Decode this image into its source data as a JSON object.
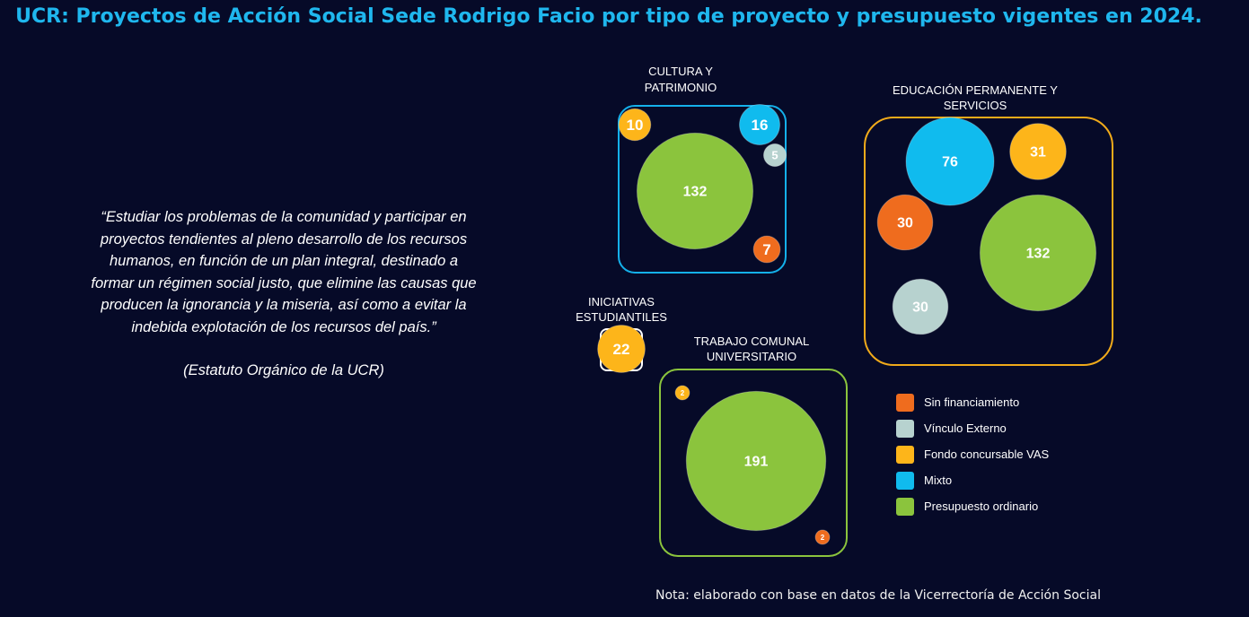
{
  "title": "UCR: Proyectos de Acción Social Sede Rodrigo Facio por tipo de proyecto y presupuesto vigentes en 2024.",
  "quote": {
    "text": "“Estudiar los problemas de la comunidad y participar en proyectos tendientes al pleno desarrollo de los recursos humanos, en función de un plan integral, destinado a formar un régimen social justo, que elimine las causas que producen la ignorancia y la miseria, así como a evitar la indebida explotación de los recursos del país.”",
    "source": "(Estatuto Orgánico de la UCR)"
  },
  "note": "Nota: elaborado con base en datos de la Vicerrectoría de Acción Social",
  "chart_data": {
    "type": "bubble",
    "categories": [
      "Sin financiamiento",
      "Vínculo Externo",
      "Fondo concursable VAS",
      "Mixto",
      "Presupuesto ordinario"
    ],
    "colors": {
      "Sin financiamiento": "#ef6c1e",
      "Vínculo Externo": "#b7d2cf",
      "Fondo concursable VAS": "#fdb51a",
      "Mixto": "#10bbee",
      "Presupuesto ordinario": "#8bc43d"
    },
    "groups": [
      {
        "name": "CULTURA Y PATRIMONIO",
        "border_color": "#14b0ea",
        "values": [
          {
            "category": "Presupuesto ordinario",
            "value": 132
          },
          {
            "category": "Fondo concursable VAS",
            "value": 10
          },
          {
            "category": "Mixto",
            "value": 16
          },
          {
            "category": "Vínculo Externo",
            "value": 5
          },
          {
            "category": "Sin financiamiento",
            "value": 7
          }
        ]
      },
      {
        "name": "EDUCACIÓN PERMANENTE Y SERVICIOS",
        "border_color": "#f0aa1a",
        "values": [
          {
            "category": "Mixto",
            "value": 76
          },
          {
            "category": "Fondo concursable VAS",
            "value": 31
          },
          {
            "category": "Sin financiamiento",
            "value": 30
          },
          {
            "category": "Presupuesto ordinario",
            "value": 132
          },
          {
            "category": "Vínculo Externo",
            "value": 30
          }
        ]
      },
      {
        "name": "INICIATIVAS ESTUDIANTILES",
        "border_color": "#ffffff",
        "values": [
          {
            "category": "Fondo concursable VAS",
            "value": 22
          }
        ]
      },
      {
        "name": "TRABAJO COMUNAL UNIVERSITARIO",
        "border_color": "#8bc43d",
        "values": [
          {
            "category": "Presupuesto ordinario",
            "value": 191
          },
          {
            "category": "Fondo concursable VAS",
            "value": 2
          },
          {
            "category": "Sin financiamiento",
            "value": 2
          }
        ]
      }
    ]
  }
}
